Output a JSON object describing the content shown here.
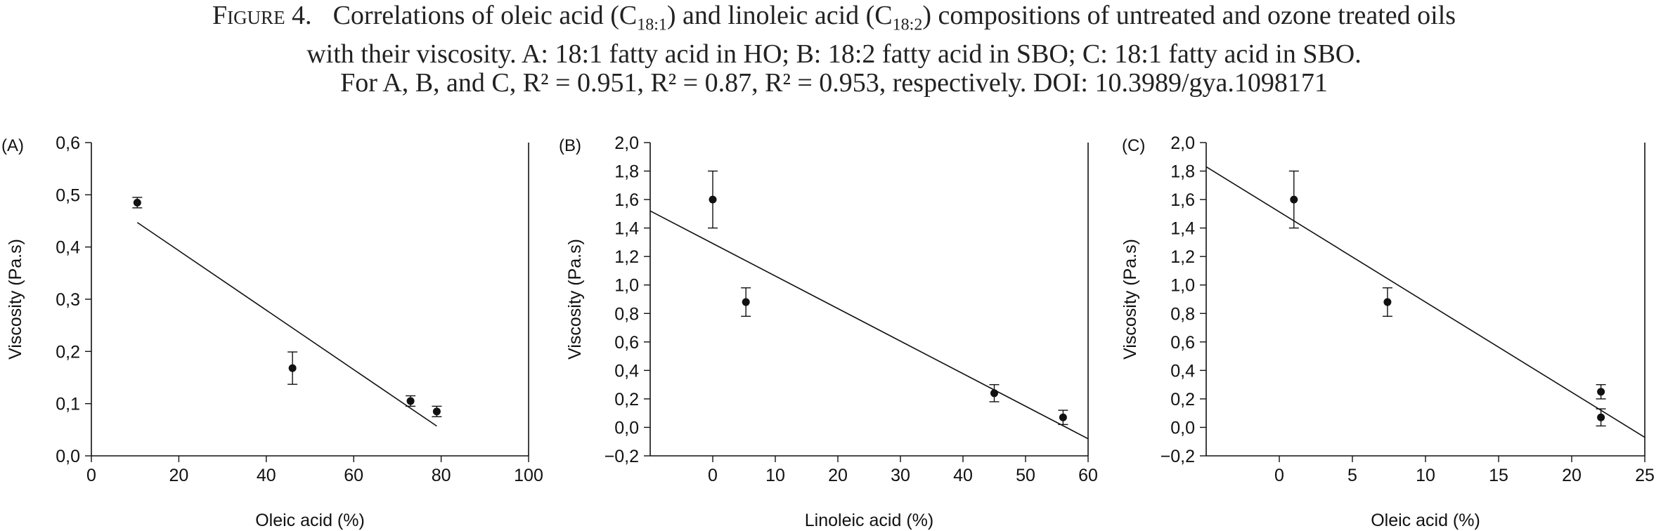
{
  "caption": {
    "label": "Figure 4.",
    "line1_a": "Correlations of oleic acid (C",
    "line1_sub1": "18:1",
    "line1_b": ") and linoleic acid (C",
    "line1_sub2": "18:2",
    "line1_c": ") compositions of untreated and ozone treated oils",
    "line2": "with their viscosity. A: 18:1 fatty acid in HO; B: 18:2 fatty acid in SBO; C: 18:1 fatty acid in SBO.",
    "line3": "For A, B, and C, R² = 0.951, R² = 0.87, R² = 0.953, respectively. DOI: 10.3989/gya.1098171"
  },
  "colors": {
    "marker": "#111111",
    "axis": "#111111",
    "line": "#111111"
  },
  "chart_data": [
    {
      "panel": "(A)",
      "type": "scatter",
      "xlabel": "Oleic acid (%)",
      "ylabel": "Viscosity (Pa.s)",
      "xlim": [
        0,
        100
      ],
      "ylim": [
        0.0,
        0.6
      ],
      "xticks": [
        "0",
        "20",
        "40",
        "60",
        "80",
        "100"
      ],
      "xtick_values": [
        0,
        20,
        40,
        60,
        80,
        100
      ],
      "yticks": [
        "0,0",
        "0,1",
        "0,2",
        "0,3",
        "0,4",
        "0,5",
        "0,6"
      ],
      "ytick_values": [
        0.0,
        0.1,
        0.2,
        0.3,
        0.4,
        0.5,
        0.6
      ],
      "points": [
        {
          "x": 10.5,
          "y": 0.485,
          "err": 0.01
        },
        {
          "x": 46,
          "y": 0.168,
          "err": 0.031
        },
        {
          "x": 73,
          "y": 0.105,
          "err": 0.01
        },
        {
          "x": 79,
          "y": 0.085,
          "err": 0.01
        }
      ],
      "fit": [
        [
          10.5,
          0.447
        ],
        [
          79,
          0.057
        ]
      ],
      "grid": false
    },
    {
      "panel": "(B)",
      "type": "scatter",
      "xlabel": "Linoleic acid (%)",
      "ylabel": "Viscosity (Pa.s)",
      "xlim": [
        -10,
        60
      ],
      "ylim": [
        -0.2,
        2.0
      ],
      "xticks": [
        "0",
        "10",
        "20",
        "30",
        "40",
        "50",
        "60"
      ],
      "xtick_values": [
        0,
        10,
        20,
        30,
        40,
        50,
        60
      ],
      "yticks": [
        "−0,2",
        "0,0",
        "0,2",
        "0,4",
        "0,6",
        "0,8",
        "1,0",
        "1,2",
        "1,4",
        "1,6",
        "1,8",
        "2,0"
      ],
      "ytick_values": [
        -0.2,
        0.0,
        0.2,
        0.4,
        0.6,
        0.8,
        1.0,
        1.2,
        1.4,
        1.6,
        1.8,
        2.0
      ],
      "points": [
        {
          "x": 0,
          "y": 1.6,
          "err": 0.2
        },
        {
          "x": 5.3,
          "y": 0.88,
          "err": 0.1
        },
        {
          "x": 45,
          "y": 0.24,
          "err": 0.06
        },
        {
          "x": 56,
          "y": 0.07,
          "err": 0.05
        }
      ],
      "fit": [
        [
          -10,
          1.52
        ],
        [
          60,
          -0.08
        ]
      ],
      "grid": false
    },
    {
      "panel": "(C)",
      "type": "scatter",
      "xlabel": "Oleic acid (%)",
      "ylabel": "Viscosity (Pa.s)",
      "xlim": [
        -5,
        25
      ],
      "ylim": [
        -0.2,
        2.0
      ],
      "xticks": [
        "0",
        "5",
        "10",
        "15",
        "20",
        "25"
      ],
      "xtick_values": [
        0,
        5,
        10,
        15,
        20,
        25
      ],
      "yticks": [
        "−0,2",
        "0,0",
        "0,2",
        "0,4",
        "0,6",
        "0,8",
        "1,0",
        "1,2",
        "1,4",
        "1,6",
        "1,8",
        "2,0"
      ],
      "ytick_values": [
        -0.2,
        0.0,
        0.2,
        0.4,
        0.6,
        0.8,
        1.0,
        1.2,
        1.4,
        1.6,
        1.8,
        2.0
      ],
      "points": [
        {
          "x": 1,
          "y": 1.6,
          "err": 0.2
        },
        {
          "x": 7.4,
          "y": 0.88,
          "err": 0.1
        },
        {
          "x": 22,
          "y": 0.25,
          "err": 0.05
        },
        {
          "x": 22,
          "y": 0.07,
          "err": 0.06
        }
      ],
      "fit": [
        [
          -5,
          1.83
        ],
        [
          25,
          -0.07
        ]
      ],
      "grid": false
    }
  ]
}
